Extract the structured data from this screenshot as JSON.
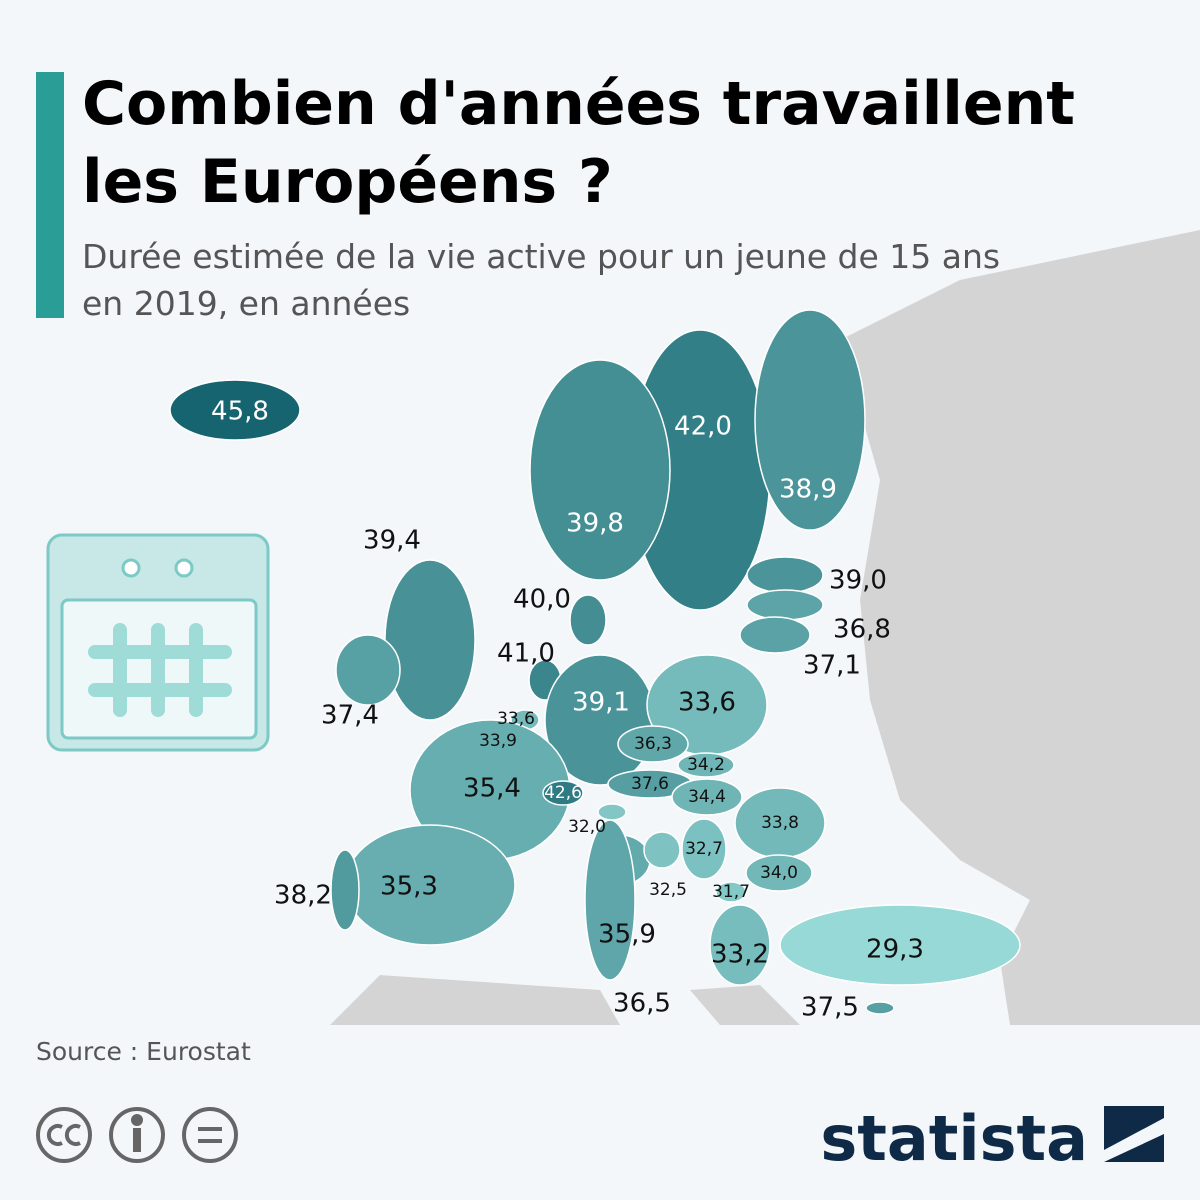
{
  "header": {
    "title_lines": [
      "Combien d'années travaillent",
      "les Européens ?"
    ],
    "subtitle_lines": [
      "Durée estimée de la vie active pour un jeune de 15 ans",
      "en 2019, en années"
    ]
  },
  "map": {
    "regions": [
      {
        "value": 45.8,
        "label": "45,8"
      },
      {
        "value": 42.0,
        "label": "42,0"
      },
      {
        "value": 38.9,
        "label": "38,9"
      },
      {
        "value": 39.8,
        "label": "39,8"
      },
      {
        "value": 39.4,
        "label": "39,4"
      },
      {
        "value": 39.0,
        "label": "39,0"
      },
      {
        "value": 36.8,
        "label": "36,8"
      },
      {
        "value": 37.1,
        "label": "37,1"
      },
      {
        "value": 40.0,
        "label": "40,0"
      },
      {
        "value": 41.0,
        "label": "41,0"
      },
      {
        "value": 39.1,
        "label": "39,1"
      },
      {
        "value": 33.6,
        "label": "33,6"
      },
      {
        "value": 37.4,
        "label": "37,4"
      },
      {
        "value": 33.6,
        "label": "33,6"
      },
      {
        "value": 33.9,
        "label": "33,9"
      },
      {
        "value": 36.3,
        "label": "36,3"
      },
      {
        "value": 34.2,
        "label": "34,2"
      },
      {
        "value": 35.4,
        "label": "35,4"
      },
      {
        "value": 37.6,
        "label": "37,6"
      },
      {
        "value": 34.4,
        "label": "34,4"
      },
      {
        "value": 42.6,
        "label": "42,6"
      },
      {
        "value": 33.8,
        "label": "33,8"
      },
      {
        "value": 32.0,
        "label": "32,0"
      },
      {
        "value": 35.9,
        "label": "35,9"
      },
      {
        "value": 32.7,
        "label": "32,7"
      },
      {
        "value": 34.0,
        "label": "34,0"
      },
      {
        "value": 32.5,
        "label": "32,5"
      },
      {
        "value": 31.7,
        "label": "31,7"
      },
      {
        "value": 35.3,
        "label": "35,3"
      },
      {
        "value": 38.2,
        "label": "38,2"
      },
      {
        "value": 33.2,
        "label": "33,2"
      },
      {
        "value": 29.3,
        "label": "29,3"
      },
      {
        "value": 36.5,
        "label": "36,5"
      },
      {
        "value": 37.5,
        "label": "37,5"
      }
    ]
  },
  "footer": {
    "source": "Source : Eurostat",
    "brand": "statista"
  }
}
